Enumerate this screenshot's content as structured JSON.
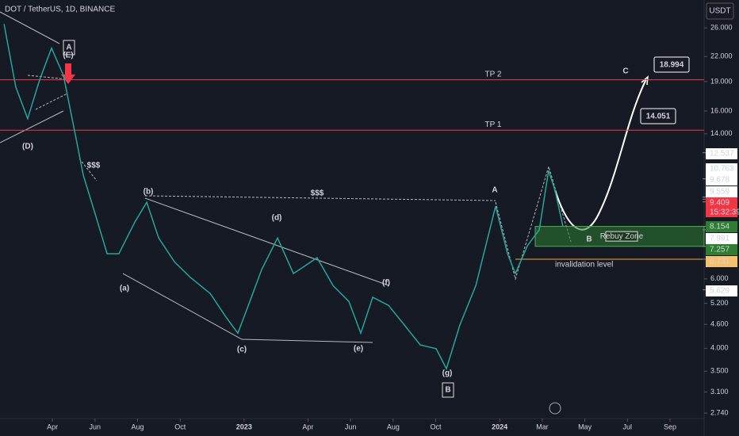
{
  "chart_data": {
    "type": "line",
    "title": "DOT / TetherUS, 1D, BINANCE",
    "y_unit": "USDT",
    "log_scale": true,
    "color": "#26a69a",
    "x": [
      0.73,
      1.28,
      1.84,
      2.4,
      2.96,
      3.52,
      4.08,
      4.45,
      5.01,
      5.57,
      6.12,
      6.87,
      7.43,
      7.99,
      8.73,
      9.48,
      10.41,
      11.15,
      11.71,
      12.27,
      12.83,
      13.57,
      14.32,
      15.43,
      16.18,
      16.92,
      17.48,
      18.04,
      18.78,
      19.53,
      20.27,
      21.02,
      21.5,
      22.13,
      22.88,
      23.44,
      23.81,
      24.37,
      24.74,
      25.3,
      25.86,
      26.3,
      26.6,
      26.97
    ],
    "values": [
      26.6,
      18.4,
      15.3,
      19.2,
      23.1,
      19.7,
      13.9,
      11.0,
      8.76,
      6.95,
      6.95,
      8.36,
      9.39,
      7.62,
      6.63,
      6.05,
      5.51,
      4.8,
      4.37,
      5.26,
      6.34,
      7.62,
      6.19,
      6.79,
      5.77,
      5.26,
      4.37,
      5.39,
      5.14,
      4.58,
      4.08,
      3.99,
      3.55,
      4.58,
      5.77,
      7.62,
      9.17,
      6.95,
      6.19,
      7.28,
      7.99,
      11.3,
      10.06,
      8.17
    ],
    "xlim": [
      0.54,
      33.6
    ],
    "xticks": [
      {
        "value": 3,
        "label": "Apr"
      },
      {
        "value": 5,
        "label": "Jun"
      },
      {
        "value": 7,
        "label": "Aug"
      },
      {
        "value": 9,
        "label": "Oct"
      },
      {
        "value": 12,
        "label": "2023"
      },
      {
        "value": 15,
        "label": "Apr"
      },
      {
        "value": 17,
        "label": "Jun"
      },
      {
        "value": 19,
        "label": "Aug"
      },
      {
        "value": 21,
        "label": "Oct"
      },
      {
        "value": 24,
        "label": "2024"
      },
      {
        "value": 26,
        "label": "Mar"
      },
      {
        "value": 28,
        "label": "May"
      },
      {
        "value": 30,
        "label": "Jul"
      },
      {
        "value": 32,
        "label": "Sep"
      }
    ],
    "ylim": [
      2.51,
      30.6
    ],
    "yticks": [
      {
        "value": 26,
        "label": "26.000"
      },
      {
        "value": 22,
        "label": "22.000"
      },
      {
        "value": 19,
        "label": "19.000"
      },
      {
        "value": 16,
        "label": "16.000"
      },
      {
        "value": 14,
        "label": "14.000"
      },
      {
        "value": 6,
        "label": "6.000"
      },
      {
        "value": 5.2,
        "label": "5.200"
      },
      {
        "value": 4.6,
        "label": "4.600"
      },
      {
        "value": 4,
        "label": "4.000"
      },
      {
        "value": 3.5,
        "label": "3.500"
      },
      {
        "value": 3.1,
        "label": "3.100"
      },
      {
        "value": 2.74,
        "label": "2.740"
      }
    ],
    "price_labels": [
      {
        "value": 12.537,
        "color": "#ffffff"
      },
      {
        "value": 10.763,
        "color": "#ffffff"
      },
      {
        "value": 9.678,
        "color": "#ffffff"
      },
      {
        "value": 9.559,
        "color": "#ffffff"
      },
      {
        "value": 9.409,
        "color": "#f23645",
        "countdown": "15:32:39"
      },
      {
        "value": 8.154,
        "color": "#2e7d32"
      },
      {
        "value": 7.991,
        "color": "#ffffff"
      },
      {
        "value": 7.257,
        "color": "#2e7d32"
      },
      {
        "value": 6.731,
        "color": "#f5c26b"
      },
      {
        "value": 5.629,
        "color": "#ffffff"
      }
    ],
    "levels": [
      {
        "label": "TP 2",
        "value": 19.2,
        "color": "#f23645"
      },
      {
        "label": "TP 1",
        "value": 14.3,
        "color": "#f23645"
      }
    ],
    "zone": {
      "label": "Rebuy Zone",
      "range": [
        7.257,
        8.154
      ],
      "color": "#2e7d32"
    },
    "invalidation": {
      "label": "invalidation level",
      "value": 6.731,
      "color": "#f5a742"
    },
    "targets": [
      18.994,
      14.051
    ],
    "annotations": [
      "(D)",
      "A",
      "(E)",
      "$$$",
      "(b)",
      "(a)",
      "(c)",
      "(d)",
      "(e)",
      "(f)",
      "(g)",
      "B",
      "$$$",
      "A",
      "B",
      "C"
    ]
  }
}
